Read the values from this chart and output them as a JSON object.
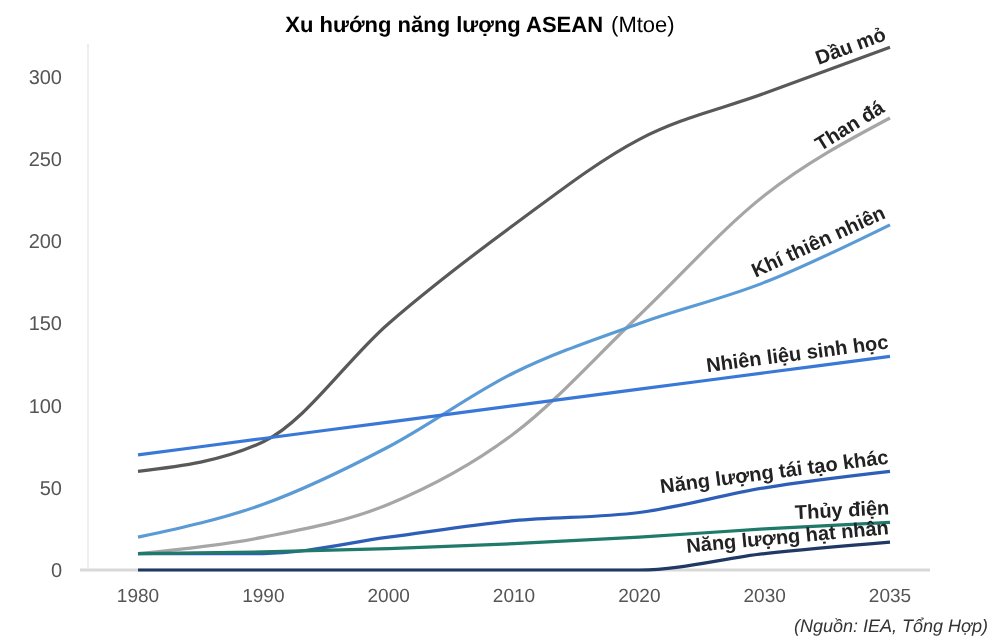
{
  "chart_data": {
    "type": "line",
    "title": "Xu hướng năng lượng ASEAN",
    "subtitle": "(Mtoe)",
    "categories": [
      "1980",
      "1990",
      "2000",
      "2010",
      "2020",
      "2030",
      "2035"
    ],
    "series": [
      {
        "name": "Dầu mỏ",
        "color": "#595959",
        "values": [
          60,
          78,
          150,
          210,
          262,
          290,
          318
        ]
      },
      {
        "name": "Than đá",
        "color": "#a6a6a6",
        "values": [
          10,
          20,
          40,
          83,
          155,
          228,
          275
        ]
      },
      {
        "name": "Khí thiên nhiên",
        "color": "#5b9bd5",
        "values": [
          20,
          40,
          75,
          120,
          150,
          175,
          210
        ]
      },
      {
        "name": "Nhiên liệu sinh học",
        "color": "#3a78d8",
        "values": [
          70,
          80,
          90,
          100,
          110,
          120,
          130
        ]
      },
      {
        "name": "Năng lượng tái tạo khác",
        "color": "#2e5fb8",
        "values": [
          10,
          10,
          20,
          30,
          35,
          50,
          60
        ]
      },
      {
        "name": "Thủy điện",
        "color": "#1f7a6a",
        "values": [
          10,
          11,
          13,
          16,
          20,
          25,
          29
        ]
      },
      {
        "name": "Năng lượng hạt nhân",
        "color": "#1f3864",
        "values": [
          0,
          0,
          0,
          0,
          0,
          10,
          17
        ]
      }
    ],
    "ylim": [
      0,
      320
    ],
    "yticks": [
      0,
      50,
      100,
      150,
      200,
      250,
      300
    ],
    "grid": false,
    "legend": false,
    "marker": "none",
    "line_style": "solid",
    "annotations": [
      "(Nguồn: IEA, Tổng Hợp)"
    ]
  }
}
